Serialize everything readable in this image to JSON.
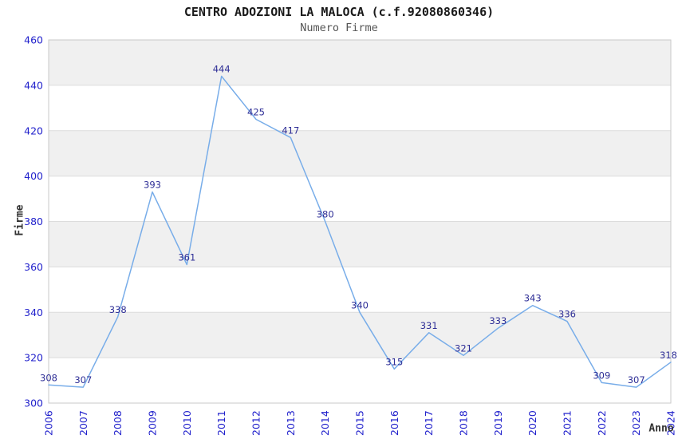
{
  "chart_data": {
    "type": "line",
    "title": "CENTRO ADOZIONI LA MALOCA (c.f.92080860346)",
    "subtitle": "Numero Firme",
    "xlabel": "Anno",
    "ylabel": "Firme",
    "categories": [
      "2006",
      "2007",
      "2008",
      "2009",
      "2010",
      "2011",
      "2012",
      "2013",
      "2014",
      "2015",
      "2016",
      "2017",
      "2018",
      "2019",
      "2020",
      "2021",
      "2022",
      "2023",
      "2024"
    ],
    "values": [
      308,
      307,
      338,
      393,
      361,
      444,
      425,
      417,
      380,
      340,
      315,
      331,
      321,
      333,
      343,
      336,
      309,
      307,
      318
    ],
    "ylim": [
      300,
      460
    ],
    "ytick_step": 20,
    "grid": "horizontal gridlines with alternating shaded bands",
    "legend": false,
    "data_labels": true,
    "x_tick_rotation": -90,
    "colors": {
      "line": "#78ade9",
      "tick_label": "#2222cc",
      "data_label": "#2e2e96",
      "band": "#f0f0f0",
      "gridline": "#dcdcdc",
      "border": "#c9c9c9",
      "title": "#1a1a1a",
      "subtitle": "#555555",
      "axis_title": "#333333",
      "background": "#ffffff"
    }
  }
}
